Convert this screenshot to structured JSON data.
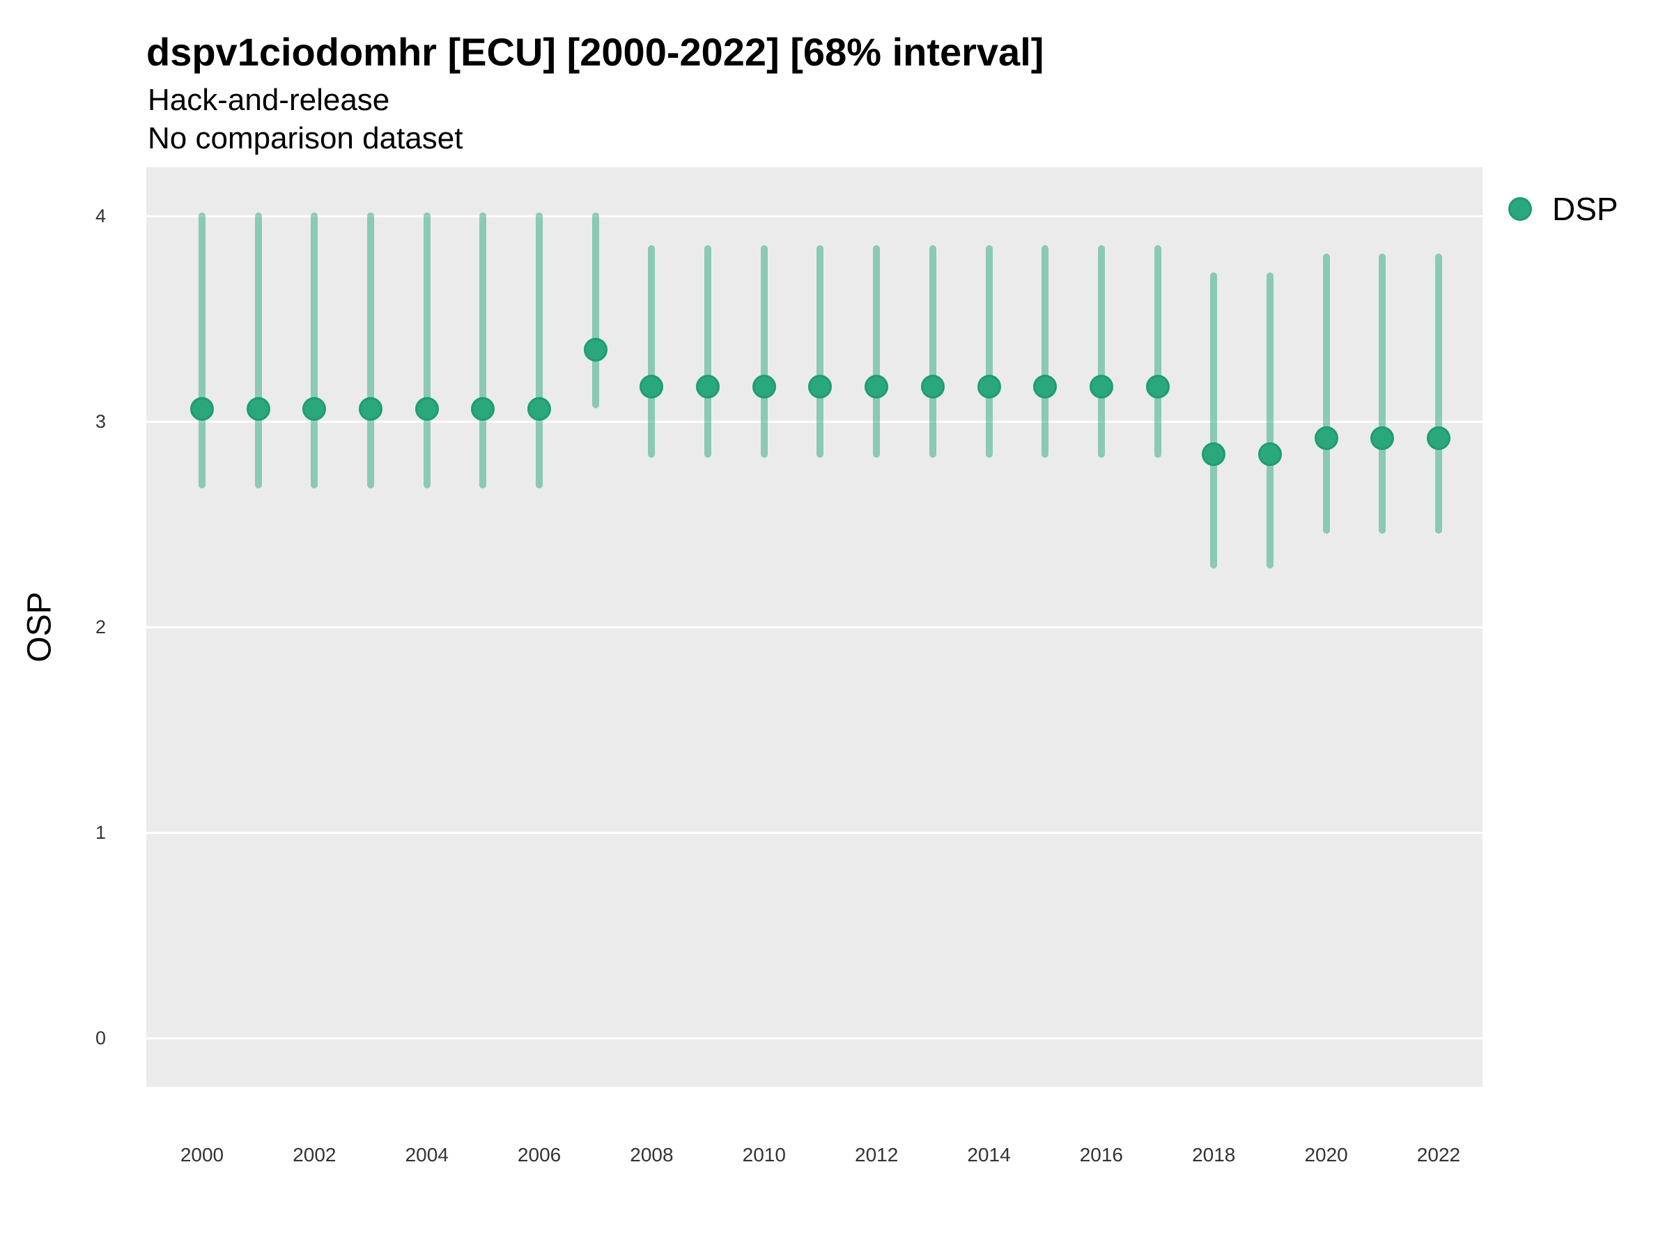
{
  "title": "dspv1ciodomhr [ECU] [2000-2022] [68% interval]",
  "subtitle": "Hack-and-release",
  "note": "No comparison dataset",
  "axes": {
    "y_title": "OSP",
    "y_ticks": [
      "0",
      "1",
      "2",
      "3",
      "4"
    ],
    "x_ticks": [
      "2000",
      "2002",
      "2004",
      "2006",
      "2008",
      "2010",
      "2012",
      "2014",
      "2016",
      "2018",
      "2020",
      "2022"
    ]
  },
  "legend": {
    "position": "right",
    "items": [
      {
        "label": "DSP",
        "marker": "circle-icon",
        "color": "#2aa87c"
      }
    ]
  },
  "colors": {
    "panel_background": "#ebebeb",
    "gridline": "#ffffff",
    "interval_bar": "rgba(42,168,124,0.5)",
    "point_fill": "#2aa87c",
    "point_ring": "#1e9c72",
    "text": "#000000",
    "tick_text": "#333333"
  },
  "chart_data": {
    "type": "scatter",
    "title": "dspv1ciodomhr [ECU] [2000-2022] [68% interval]",
    "subtitle": "Hack-and-release",
    "annotation": "No comparison dataset",
    "interval": "68%",
    "xlabel": "",
    "ylabel": "OSP",
    "ylim": [
      -0.24,
      4.24
    ],
    "y_gridlines": [
      0,
      1,
      2,
      3,
      4
    ],
    "x_tick_years": [
      2000,
      2002,
      2004,
      2006,
      2008,
      2010,
      2012,
      2014,
      2016,
      2018,
      2020,
      2022
    ],
    "grid": "major-horizontal",
    "legend_position": "right",
    "series": [
      {
        "name": "DSP",
        "points": [
          {
            "year": 2000,
            "lo": 2.69,
            "mid": 3.06,
            "hi": 4.0
          },
          {
            "year": 2001,
            "lo": 2.69,
            "mid": 3.06,
            "hi": 4.0
          },
          {
            "year": 2002,
            "lo": 2.69,
            "mid": 3.06,
            "hi": 4.0
          },
          {
            "year": 2003,
            "lo": 2.69,
            "mid": 3.06,
            "hi": 4.0
          },
          {
            "year": 2004,
            "lo": 2.69,
            "mid": 3.06,
            "hi": 4.0
          },
          {
            "year": 2005,
            "lo": 2.69,
            "mid": 3.06,
            "hi": 4.0
          },
          {
            "year": 2006,
            "lo": 2.69,
            "mid": 3.06,
            "hi": 4.0
          },
          {
            "year": 2007,
            "lo": 3.08,
            "mid": 3.35,
            "hi": 4.0
          },
          {
            "year": 2008,
            "lo": 2.84,
            "mid": 3.17,
            "hi": 3.84
          },
          {
            "year": 2009,
            "lo": 2.84,
            "mid": 3.17,
            "hi": 3.84
          },
          {
            "year": 2010,
            "lo": 2.84,
            "mid": 3.17,
            "hi": 3.84
          },
          {
            "year": 2011,
            "lo": 2.84,
            "mid": 3.17,
            "hi": 3.84
          },
          {
            "year": 2012,
            "lo": 2.84,
            "mid": 3.17,
            "hi": 3.84
          },
          {
            "year": 2013,
            "lo": 2.84,
            "mid": 3.17,
            "hi": 3.84
          },
          {
            "year": 2014,
            "lo": 2.84,
            "mid": 3.17,
            "hi": 3.84
          },
          {
            "year": 2015,
            "lo": 2.84,
            "mid": 3.17,
            "hi": 3.84
          },
          {
            "year": 2016,
            "lo": 2.84,
            "mid": 3.17,
            "hi": 3.84
          },
          {
            "year": 2017,
            "lo": 2.84,
            "mid": 3.17,
            "hi": 3.84
          },
          {
            "year": 2018,
            "lo": 2.3,
            "mid": 2.84,
            "hi": 3.71
          },
          {
            "year": 2019,
            "lo": 2.3,
            "mid": 2.84,
            "hi": 3.71
          },
          {
            "year": 2020,
            "lo": 2.47,
            "mid": 2.92,
            "hi": 3.8
          },
          {
            "year": 2021,
            "lo": 2.47,
            "mid": 2.92,
            "hi": 3.8
          },
          {
            "year": 2022,
            "lo": 2.47,
            "mid": 2.92,
            "hi": 3.8
          }
        ]
      }
    ]
  }
}
